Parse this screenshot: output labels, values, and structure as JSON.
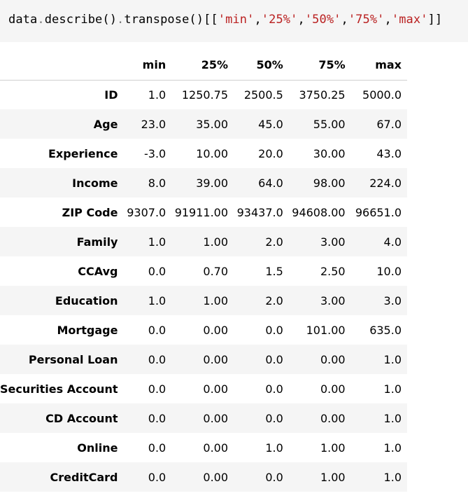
{
  "code": {
    "object": "data",
    "method1": "describe",
    "method2": "transpose",
    "keys": [
      "'min'",
      "'25%'",
      "'50%'",
      "'75%'",
      "'max'"
    ]
  },
  "table": {
    "columns": [
      "min",
      "25%",
      "50%",
      "75%",
      "max"
    ],
    "rows": [
      {
        "label": "ID",
        "values": [
          "1.0",
          "1250.75",
          "2500.5",
          "3750.25",
          "5000.0"
        ]
      },
      {
        "label": "Age",
        "values": [
          "23.0",
          "35.00",
          "45.0",
          "55.00",
          "67.0"
        ]
      },
      {
        "label": "Experience",
        "values": [
          "-3.0",
          "10.00",
          "20.0",
          "30.00",
          "43.0"
        ]
      },
      {
        "label": "Income",
        "values": [
          "8.0",
          "39.00",
          "64.0",
          "98.00",
          "224.0"
        ]
      },
      {
        "label": "ZIP Code",
        "values": [
          "9307.0",
          "91911.00",
          "93437.0",
          "94608.00",
          "96651.0"
        ]
      },
      {
        "label": "Family",
        "values": [
          "1.0",
          "1.00",
          "2.0",
          "3.00",
          "4.0"
        ]
      },
      {
        "label": "CCAvg",
        "values": [
          "0.0",
          "0.70",
          "1.5",
          "2.50",
          "10.0"
        ]
      },
      {
        "label": "Education",
        "values": [
          "1.0",
          "1.00",
          "2.0",
          "3.00",
          "3.0"
        ]
      },
      {
        "label": "Mortgage",
        "values": [
          "0.0",
          "0.00",
          "0.0",
          "101.00",
          "635.0"
        ]
      },
      {
        "label": "Personal Loan",
        "values": [
          "0.0",
          "0.00",
          "0.0",
          "0.00",
          "1.0"
        ]
      },
      {
        "label": "Securities Account",
        "values": [
          "0.0",
          "0.00",
          "0.0",
          "0.00",
          "1.0"
        ]
      },
      {
        "label": "CD Account",
        "values": [
          "0.0",
          "0.00",
          "0.0",
          "0.00",
          "1.0"
        ]
      },
      {
        "label": "Online",
        "values": [
          "0.0",
          "0.00",
          "1.0",
          "1.00",
          "1.0"
        ]
      },
      {
        "label": "CreditCard",
        "values": [
          "0.0",
          "0.00",
          "0.0",
          "1.00",
          "1.0"
        ]
      }
    ]
  }
}
